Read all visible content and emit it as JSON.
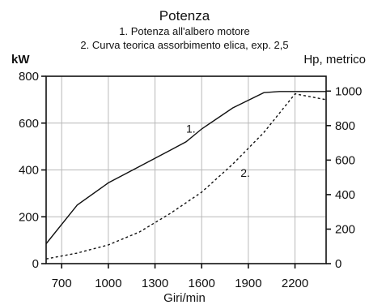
{
  "chart_data": {
    "type": "line",
    "title": "Potenza",
    "subtitle_lines": [
      "1. Potenza all'albero motore",
      "2. Curva teorica assorbimento elica, exp. 2,5"
    ],
    "xlabel": "Giri/min",
    "ylabel_left": "kW",
    "ylabel_right": "Hp, metrico",
    "xlim": [
      600,
      2400
    ],
    "ylim_left": [
      0,
      800
    ],
    "ylim_right": [
      0,
      1086
    ],
    "x_ticks": [
      700,
      1000,
      1300,
      1600,
      1900,
      2200
    ],
    "x_tick_labels": [
      "700",
      "1000",
      "1300",
      "1600",
      "1900",
      "2200"
    ],
    "y_left_ticks": [
      0,
      200,
      400,
      600,
      800
    ],
    "y_left_tick_labels": [
      "0",
      "200",
      "400",
      "600",
      "800"
    ],
    "y_right_ticks": [
      0,
      200,
      400,
      600,
      800,
      1000
    ],
    "y_right_tick_labels": [
      "0",
      "200",
      "400",
      "600",
      "800",
      "1000"
    ],
    "grid": true,
    "series": [
      {
        "name": "1.",
        "style": "solid",
        "x": [
          600,
          800,
          1000,
          1200,
          1400,
          1500,
          1600,
          1800,
          2000,
          2100,
          2400
        ],
        "y": [
          85,
          250,
          345,
          415,
          485,
          520,
          575,
          665,
          730,
          735,
          735
        ]
      },
      {
        "name": "2.",
        "style": "dashed",
        "x": [
          600,
          800,
          1000,
          1200,
          1400,
          1500,
          1600,
          1800,
          2000,
          2200,
          2400
        ],
        "y": [
          20,
          45,
          80,
          135,
          215,
          260,
          305,
          425,
          560,
          725,
          700
        ]
      }
    ]
  }
}
